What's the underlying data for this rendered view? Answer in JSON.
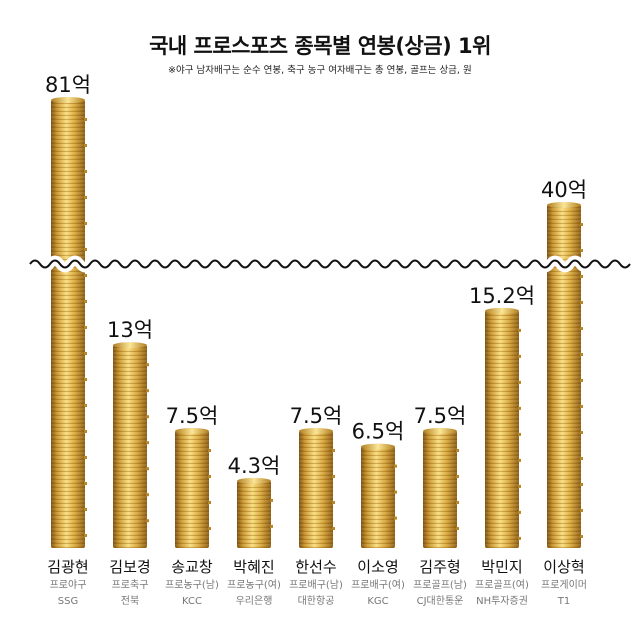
{
  "chart_data": {
    "type": "bar",
    "title": "국내 프로스포츠 종목별 연봉(상금) 1위",
    "subtitle": "※야구 남자배구는 순수 연봉, 축구 농구 여자배구는 총 연봉, 골프는 상금, 원",
    "unit": "억",
    "axis_break": true,
    "categories": [
      "김광현",
      "김보경",
      "송교창",
      "박혜진",
      "한선수",
      "이소영",
      "김주형",
      "박민지",
      "이상혁"
    ],
    "values": [
      81,
      13,
      7.5,
      4.3,
      7.5,
      6.5,
      7.5,
      15.2,
      40
    ],
    "value_labels": [
      "81억",
      "13억",
      "7.5억",
      "4.3억",
      "7.5억",
      "6.5억",
      "7.5억",
      "15.2억",
      "40억"
    ],
    "sports": [
      "프로야구",
      "프로축구",
      "프로농구(남)",
      "프로농구(여)",
      "프로배구(남)",
      "프로배구(여)",
      "프로골프(남)",
      "프로골프(여)",
      "프로게이머"
    ],
    "teams": [
      "SSG",
      "전북",
      "KCC",
      "우리은행",
      "대한항공",
      "KGC",
      "CJ대한통운",
      "NH투자증권",
      "T1"
    ],
    "colors": {
      "coin_light": "#f6d472",
      "coin_mid": "#d9a83a",
      "coin_dark": "#8a5a12",
      "wave": "#111111"
    }
  }
}
